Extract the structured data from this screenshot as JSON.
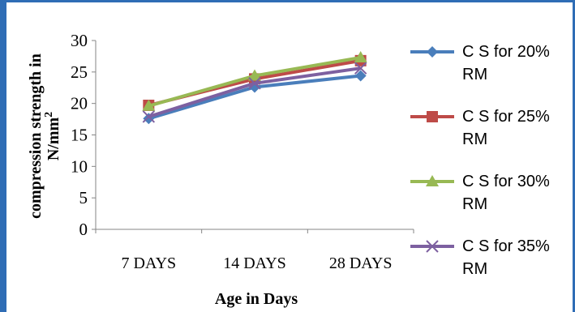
{
  "chart_data": {
    "type": "line",
    "categories": [
      "7 DAYS",
      "14 DAYS",
      "28 DAYS"
    ],
    "series": [
      {
        "name": "C S for 20% RM",
        "values": [
          17.6,
          22.6,
          24.4
        ],
        "color": "#4a7ebb",
        "marker": "diamond"
      },
      {
        "name": "C S for 25% RM",
        "values": [
          19.7,
          23.9,
          26.8
        ],
        "color": "#be4b48",
        "marker": "square"
      },
      {
        "name": "C S for 30% RM",
        "values": [
          19.6,
          24.4,
          27.3
        ],
        "color": "#98b954",
        "marker": "triangle"
      },
      {
        "name": "C S for 35% RM",
        "values": [
          17.9,
          23.2,
          25.6
        ],
        "color": "#7d60a0",
        "marker": "x"
      }
    ],
    "xlabel": "Age in Days",
    "ylabel_line1": "compression strength  in",
    "ylabel_line2": "N/mm",
    "ylabel_sup": "2",
    "ylim": [
      0,
      30
    ],
    "yticks": [
      0,
      5,
      10,
      15,
      20,
      25,
      30
    ],
    "grid": false,
    "legend_placement": "right"
  },
  "legend_lines": [
    [
      "C S for 20%",
      "RM"
    ],
    [
      "C S for 25%",
      "RM"
    ],
    [
      "C S for 30%",
      "RM"
    ],
    [
      "C S for 35%",
      "RM"
    ]
  ],
  "colors": {
    "frame": "#2f6db5",
    "axis": "#868686"
  }
}
